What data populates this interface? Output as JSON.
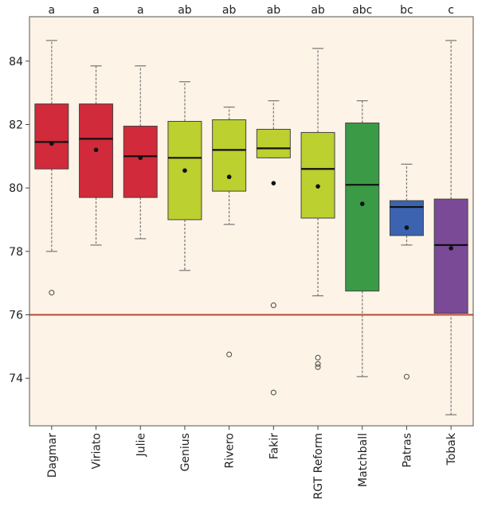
{
  "chart_data": {
    "type": "boxplot",
    "ylim": [
      72.5,
      85.4
    ],
    "yticks": [
      74,
      76,
      78,
      80,
      82,
      84
    ],
    "reference_line": {
      "y": 76,
      "color": "#b84a3a"
    },
    "grid": false,
    "background": "#fdf3e6",
    "categories": [
      "Dagmar",
      "Viriato",
      "Julie",
      "Genius",
      "Rivero",
      "Fakir",
      "RGT Reform",
      "Matchball",
      "Patras",
      "Tobak"
    ],
    "groups": [
      "a",
      "a",
      "a",
      "ab",
      "ab",
      "ab",
      "ab",
      "abc",
      "bc",
      "c"
    ],
    "colors": [
      "#d12a3a",
      "#d12a3a",
      "#d12a3a",
      "#bcd02f",
      "#bcd02f",
      "#bcd02f",
      "#bcd02f",
      "#3a9a45",
      "#3b63b0",
      "#7b4a97"
    ],
    "boxes": [
      {
        "min": 78.0,
        "q1": 80.6,
        "median": 81.45,
        "q3": 82.65,
        "max": 84.65,
        "mean": 81.4,
        "outliers": [
          76.7
        ]
      },
      {
        "min": 78.2,
        "q1": 79.7,
        "median": 81.55,
        "q3": 82.65,
        "max": 83.85,
        "mean": 81.2,
        "outliers": []
      },
      {
        "min": 78.4,
        "q1": 79.7,
        "median": 81.0,
        "q3": 81.95,
        "max": 83.85,
        "mean": 80.95,
        "outliers": []
      },
      {
        "min": 77.4,
        "q1": 79.0,
        "median": 80.95,
        "q3": 82.1,
        "max": 83.35,
        "mean": 80.55,
        "outliers": []
      },
      {
        "min": 78.85,
        "q1": 79.9,
        "median": 81.2,
        "q3": 82.15,
        "max": 82.55,
        "mean": 80.35,
        "outliers": [
          74.75
        ]
      },
      {
        "min": 80.95,
        "q1": 80.95,
        "median": 81.25,
        "q3": 81.85,
        "max": 82.75,
        "mean": 80.15,
        "outliers": [
          76.3,
          73.55
        ]
      },
      {
        "min": 76.6,
        "q1": 79.05,
        "median": 80.6,
        "q3": 81.75,
        "max": 84.4,
        "mean": 80.05,
        "outliers": [
          74.65,
          74.45,
          74.35
        ]
      },
      {
        "min": 74.05,
        "q1": 76.75,
        "median": 80.1,
        "q3": 82.05,
        "max": 82.75,
        "mean": 79.5,
        "outliers": []
      },
      {
        "min": 78.2,
        "q1": 78.5,
        "median": 79.4,
        "q3": 79.6,
        "max": 80.75,
        "mean": 78.75,
        "outliers": [
          74.05
        ]
      },
      {
        "min": 72.85,
        "q1": 76.05,
        "median": 78.2,
        "q3": 79.65,
        "max": 84.65,
        "mean": 78.1,
        "outliers": []
      }
    ]
  }
}
